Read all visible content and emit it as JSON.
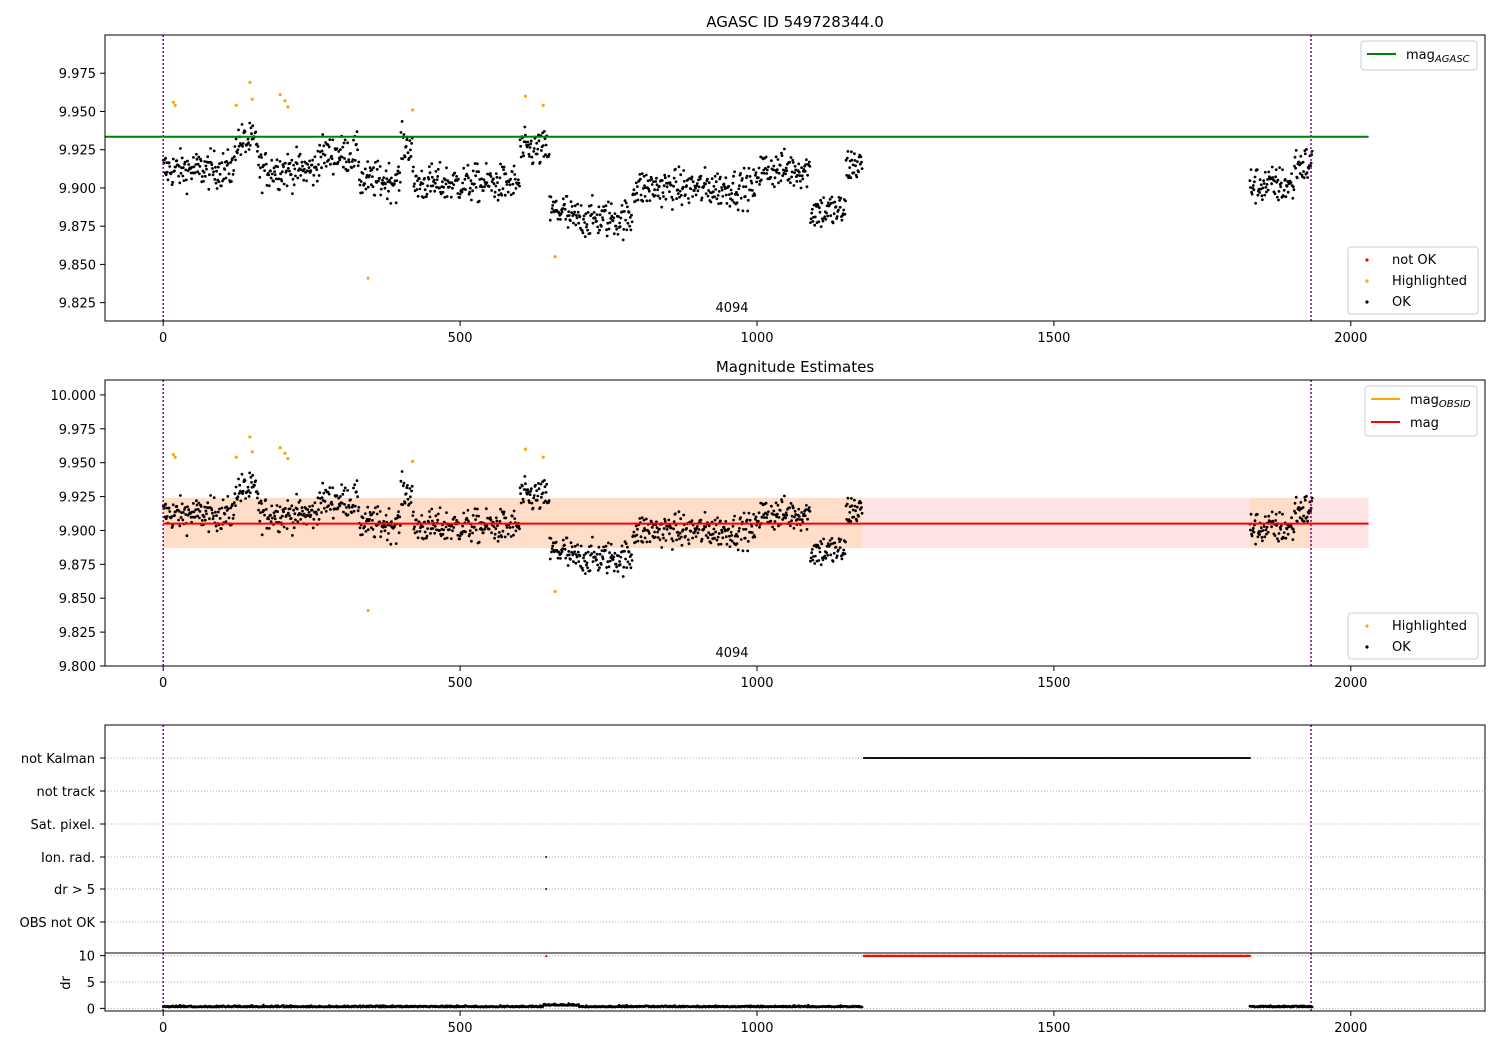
{
  "chart_data": [
    {
      "type": "scatter",
      "title": "AGASC ID 549728344.0",
      "xlim": [
        -98,
        2226
      ],
      "ylim": [
        9.813,
        10.0
      ],
      "x_ticks": [
        "0",
        "500",
        "1000",
        "1500",
        "2000"
      ],
      "y_ticks": [
        "9.825",
        "9.850",
        "9.875",
        "9.900",
        "9.925",
        "9.950",
        "9.975"
      ],
      "annotation": "4094",
      "vlines": [
        0,
        1933
      ],
      "mag_agasc": 9.9335,
      "mag_agasc_x": [
        -98,
        2030
      ],
      "legend_lines": [
        {
          "label": "mag",
          "sub": "AGASC",
          "color": "#008000"
        }
      ],
      "legend_points": [
        {
          "label": "not OK",
          "color": "#ff0000"
        },
        {
          "label": "Highlighted",
          "color": "#ffa500"
        },
        {
          "label": "OK",
          "color": "#000000"
        }
      ],
      "segments": [
        {
          "x_start": 0,
          "x_end": 1177,
          "n": 1180
        },
        {
          "x_start": 1830,
          "x_end": 1935,
          "n": 110
        }
      ],
      "highlighted": [
        {
          "x": 17,
          "y": 9.956
        },
        {
          "x": 20,
          "y": 9.954
        },
        {
          "x": 123,
          "y": 9.954
        },
        {
          "x": 146,
          "y": 9.969
        },
        {
          "x": 150,
          "y": 9.958
        },
        {
          "x": 197,
          "y": 9.961
        },
        {
          "x": 205,
          "y": 9.957
        },
        {
          "x": 210,
          "y": 9.953
        },
        {
          "x": 345,
          "y": 9.841
        },
        {
          "x": 420,
          "y": 9.951
        },
        {
          "x": 610,
          "y": 9.96
        },
        {
          "x": 640,
          "y": 9.954
        },
        {
          "x": 660,
          "y": 9.855
        }
      ]
    },
    {
      "type": "scatter",
      "title": "Magnitude Estimates",
      "xlim": [
        -98,
        2226
      ],
      "ylim": [
        9.8,
        10.011
      ],
      "x_ticks": [
        "0",
        "500",
        "1000",
        "1500",
        "2000"
      ],
      "y_ticks": [
        "9.800",
        "9.825",
        "9.850",
        "9.875",
        "9.900",
        "9.925",
        "9.950",
        "9.975",
        "10.000"
      ],
      "annotation": "4094",
      "vlines": [
        0,
        1933
      ],
      "mag": 9.905,
      "mag_band": [
        9.887,
        9.924
      ],
      "mag_obsid_band": [
        9.887,
        9.924
      ],
      "band_x": [
        0,
        2030
      ],
      "legend_lines": [
        {
          "label": "mag",
          "sub": "OBSID",
          "color": "#ffa500"
        },
        {
          "label": "mag",
          "sub": "",
          "color": "#ff0000"
        }
      ],
      "legend_points": [
        {
          "label": "Highlighted",
          "color": "#ffa500"
        },
        {
          "label": "OK",
          "color": "#000000"
        }
      ]
    },
    {
      "type": "scatter",
      "title": "",
      "xlim": [
        -98,
        2226
      ],
      "x_ticks": [
        "0",
        "500",
        "1000",
        "1500",
        "2000"
      ],
      "flag_labels": [
        "not Kalman",
        "not track",
        "Sat. pixel.",
        "Ion. rad.",
        "dr > 5",
        "OBS not OK"
      ],
      "vlines": [
        0,
        1933
      ],
      "flags": {
        "not_kalman": [
          1180,
          1830
        ],
        "ion_rad": [
          645
        ],
        "dr_gt_5": [
          645
        ]
      },
      "dr": {
        "ylabel": "dr",
        "y_ticks": [
          "0",
          "5",
          "10"
        ],
        "ylim": [
          -0.5,
          10.5
        ],
        "clipped_x": [
          1180,
          1830
        ],
        "clipped_single": 645,
        "clipped_value": 10
      }
    }
  ]
}
